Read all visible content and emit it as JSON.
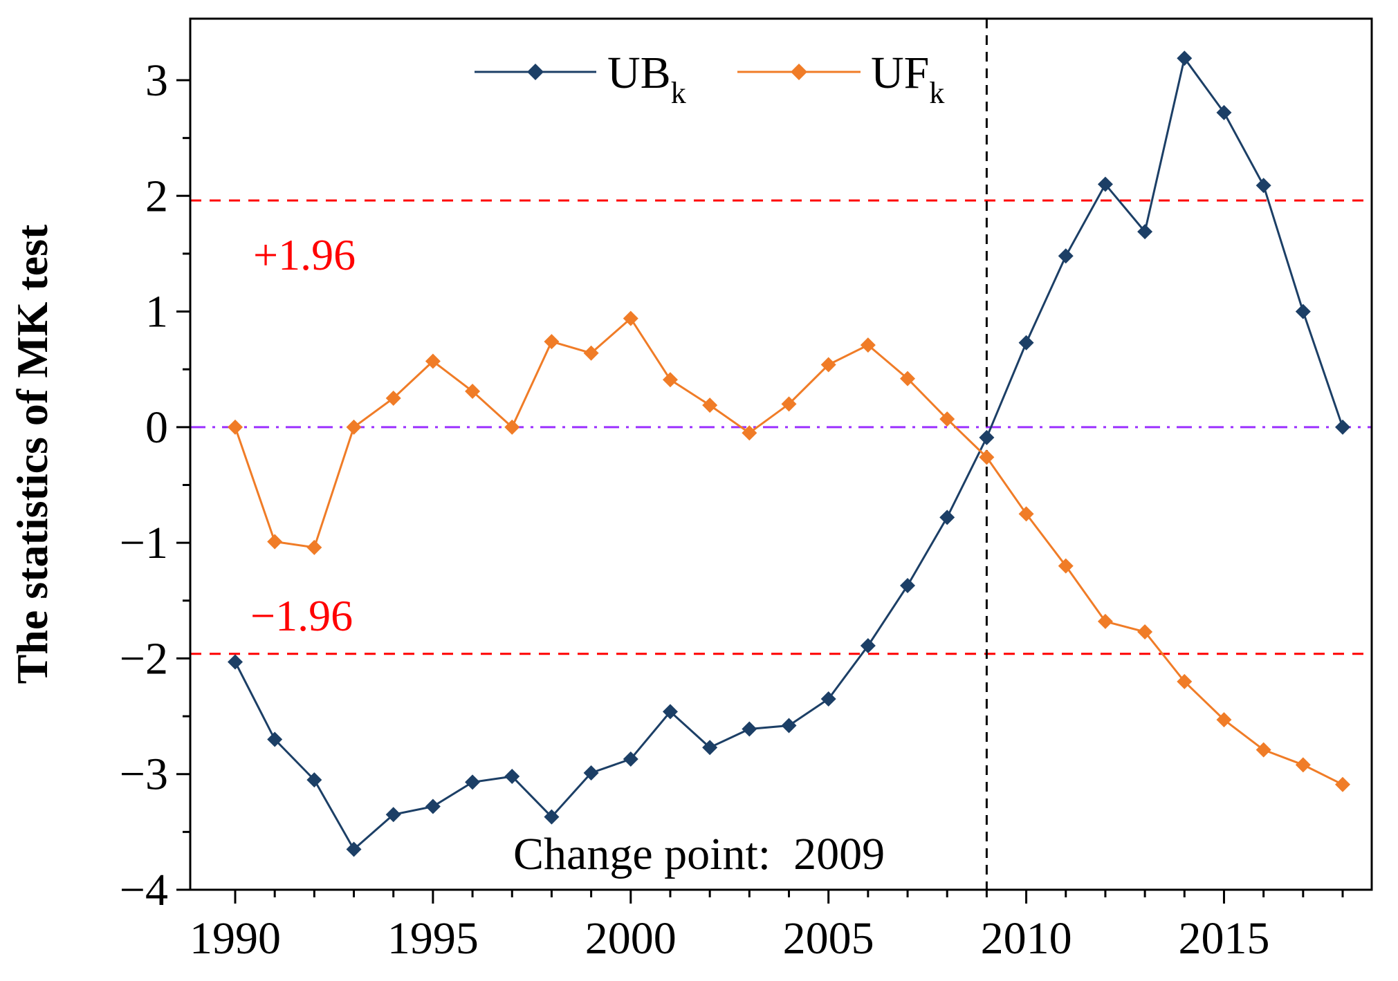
{
  "chart_data": {
    "type": "line",
    "title": "",
    "xlabel": "",
    "ylabel": "The statistics of MK test",
    "xlim": [
      1989,
      2019
    ],
    "ylim": [
      -4,
      3.5
    ],
    "xticks": [
      1990,
      1995,
      2000,
      2005,
      2010,
      2015
    ],
    "xtick_labels": [
      "1990",
      "1995",
      "2000",
      "2005",
      "2010",
      "2015"
    ],
    "yticks": [
      -4,
      -3,
      -2,
      -1,
      0,
      1,
      2,
      3
    ],
    "ytick_labels": [
      "−4",
      "−3",
      "−2",
      "−1",
      "0",
      "1",
      "2",
      "3"
    ],
    "x": [
      1990,
      1991,
      1992,
      1993,
      1994,
      1995,
      1996,
      1997,
      1998,
      1999,
      2000,
      2001,
      2002,
      2003,
      2004,
      2005,
      2006,
      2007,
      2008,
      2009,
      2010,
      2011,
      2012,
      2013,
      2014,
      2015,
      2016,
      2017,
      2018
    ],
    "series": [
      {
        "name": "UB",
        "subscript": "k",
        "color": "#1c3f66",
        "values": [
          -2.03,
          -2.7,
          -3.05,
          -3.65,
          -3.35,
          -3.28,
          -3.07,
          -3.02,
          -3.37,
          -2.99,
          -2.87,
          -2.46,
          -2.77,
          -2.61,
          -2.58,
          -2.35,
          -1.89,
          -1.37,
          -0.78,
          -0.09,
          0.73,
          1.48,
          2.1,
          1.69,
          3.19,
          2.72,
          2.09,
          1.0,
          0.0
        ]
      },
      {
        "name": "UF",
        "subscript": "k",
        "color": "#f07c27",
        "values": [
          0.0,
          -0.99,
          -1.04,
          0.0,
          0.25,
          0.57,
          0.31,
          0.0,
          0.74,
          0.64,
          0.94,
          0.41,
          0.19,
          -0.05,
          0.2,
          0.54,
          0.71,
          0.42,
          0.07,
          -0.26,
          -0.75,
          -1.2,
          -1.68,
          -1.77,
          -2.2,
          -2.53,
          -2.79,
          -2.92,
          -3.09
        ]
      }
    ],
    "reference_lines": [
      {
        "y": 1.96,
        "label": "+1.96",
        "color": "#ff0000",
        "style": "dashed"
      },
      {
        "y": -1.96,
        "label": "−1.96",
        "color": "#ff0000",
        "style": "dashed"
      },
      {
        "y": 0,
        "label": "",
        "color": "#9b30ff",
        "style": "dashdot"
      }
    ],
    "change_point": {
      "x": 2009,
      "label": "Change point:  2009"
    },
    "legend": "top-center",
    "grid": false
  }
}
